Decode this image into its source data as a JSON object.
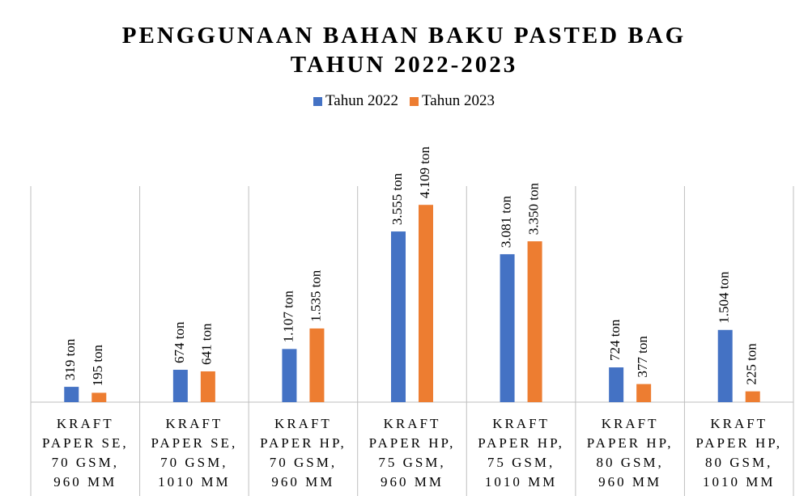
{
  "chart_data": {
    "type": "bar",
    "title": "PENGGUNAAN BAHAN BAKU PASTED BAG\nTAHUN 2022-2023",
    "categories": [
      "KRAFT\nPAPER SE,\n70 GSM,\n960 MM",
      "KRAFT\nPAPER SE,\n70 GSM,\n1010 MM",
      "KRAFT\nPAPER HP,\n70 GSM,\n960 MM",
      "KRAFT\nPAPER HP,\n75 GSM,\n960 MM",
      "KRAFT\nPAPER HP,\n75 GSM,\n1010 MM",
      "KRAFT\nPAPER HP,\n80 GSM,\n960 MM",
      "KRAFT\nPAPER HP,\n80 GSM,\n1010 MM"
    ],
    "series": [
      {
        "name": "Tahun 2022",
        "color": "#4472c4",
        "values": [
          319,
          674,
          1107,
          3555,
          3081,
          724,
          1504
        ],
        "value_labels": [
          "319 ton",
          "674 ton",
          "1.107 ton",
          "3.555 ton",
          "3.081 ton",
          "724 ton",
          "1.504 ton"
        ]
      },
      {
        "name": "Tahun 2023",
        "color": "#ed7d31",
        "values": [
          195,
          641,
          1535,
          4109,
          3350,
          377,
          225
        ],
        "value_labels": [
          "195 ton",
          "641 ton",
          "1.535 ton",
          "4.109 ton",
          "3.350 ton",
          "377 ton",
          "225 ton"
        ]
      }
    ],
    "ylim": [
      0,
      4500
    ],
    "legend": "top"
  }
}
